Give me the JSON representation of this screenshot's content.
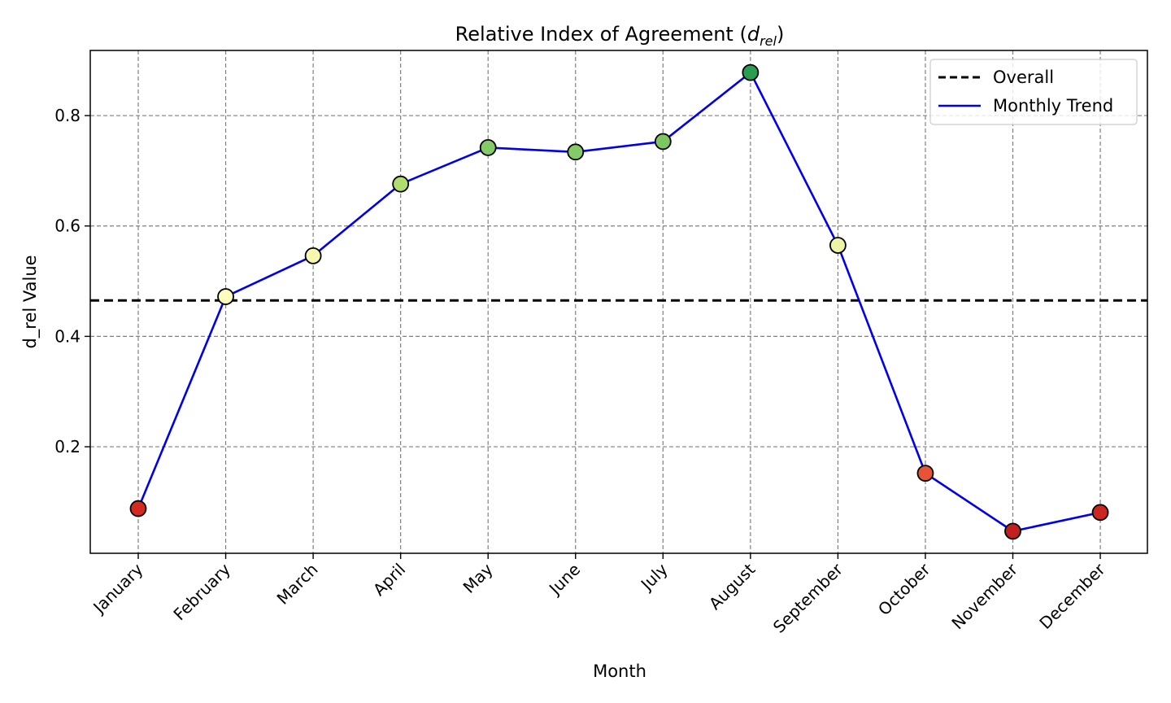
{
  "chart_data": {
    "type": "line",
    "title": "Relative Index of Agreement (",
    "title_symbol": "d",
    "title_subscript": "rel",
    "title_suffix": ")",
    "xlabel": "Month",
    "ylabel": "d_rel Value",
    "categories": [
      "January",
      "February",
      "March",
      "April",
      "May",
      "June",
      "July",
      "August",
      "September",
      "October",
      "November",
      "December"
    ],
    "series": [
      {
        "name": "Monthly Trend",
        "color": "#0000ee",
        "values": [
          0.088,
          0.472,
          0.546,
          0.676,
          0.742,
          0.734,
          0.753,
          0.878,
          0.565,
          0.152,
          0.047,
          0.081
        ],
        "marker_colors": [
          "#d42a22",
          "#fefdbd",
          "#f6f8b0",
          "#b2dd6e",
          "#84ca66",
          "#84ca66",
          "#7ec662",
          "#2a9e50",
          "#ecf5a6",
          "#e75336",
          "#c2201f",
          "#cd2620"
        ]
      }
    ],
    "reference_line": {
      "name": "Overall",
      "value": 0.465,
      "color": "#000000",
      "style": "dashed"
    },
    "ylim": [
      0.007,
      0.918
    ],
    "yticks": [
      0.2,
      0.4,
      0.6,
      0.8
    ],
    "ytick_labels": [
      "0.2",
      "0.4",
      "0.6",
      "0.8"
    ],
    "grid": true,
    "legend": {
      "position": "top-right",
      "entries": [
        "Overall",
        "Monthly Trend"
      ]
    }
  }
}
